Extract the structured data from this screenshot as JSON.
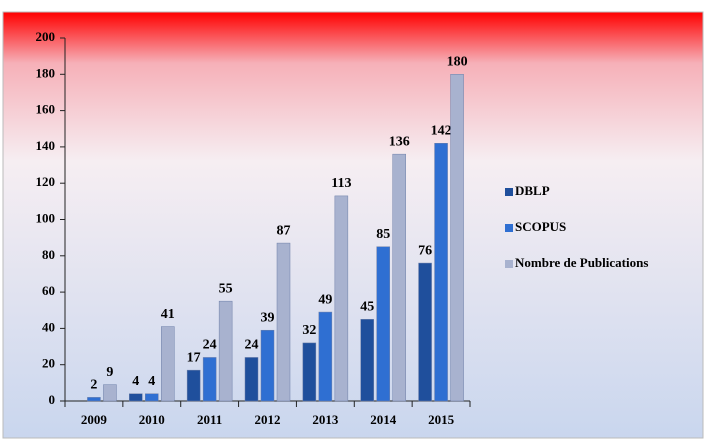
{
  "chart_data": {
    "type": "bar",
    "categories": [
      "2009",
      "2010",
      "2011",
      "2012",
      "2013",
      "2014",
      "2015"
    ],
    "series": [
      {
        "name": "DBLP",
        "color": "#1f4f9c",
        "values": [
          null,
          4,
          17,
          24,
          32,
          45,
          76
        ]
      },
      {
        "name": "SCOPUS",
        "color": "#2f6fd2",
        "values": [
          2,
          4,
          24,
          39,
          49,
          85,
          142
        ]
      },
      {
        "name": "Nombre de Publications",
        "color": "#a8b2cf",
        "values": [
          9,
          41,
          55,
          87,
          113,
          136,
          180
        ]
      }
    ],
    "ylim": [
      0,
      200
    ],
    "yticks": [
      0,
      20,
      40,
      60,
      80,
      100,
      120,
      140,
      160,
      180,
      200
    ],
    "legend": "right"
  }
}
